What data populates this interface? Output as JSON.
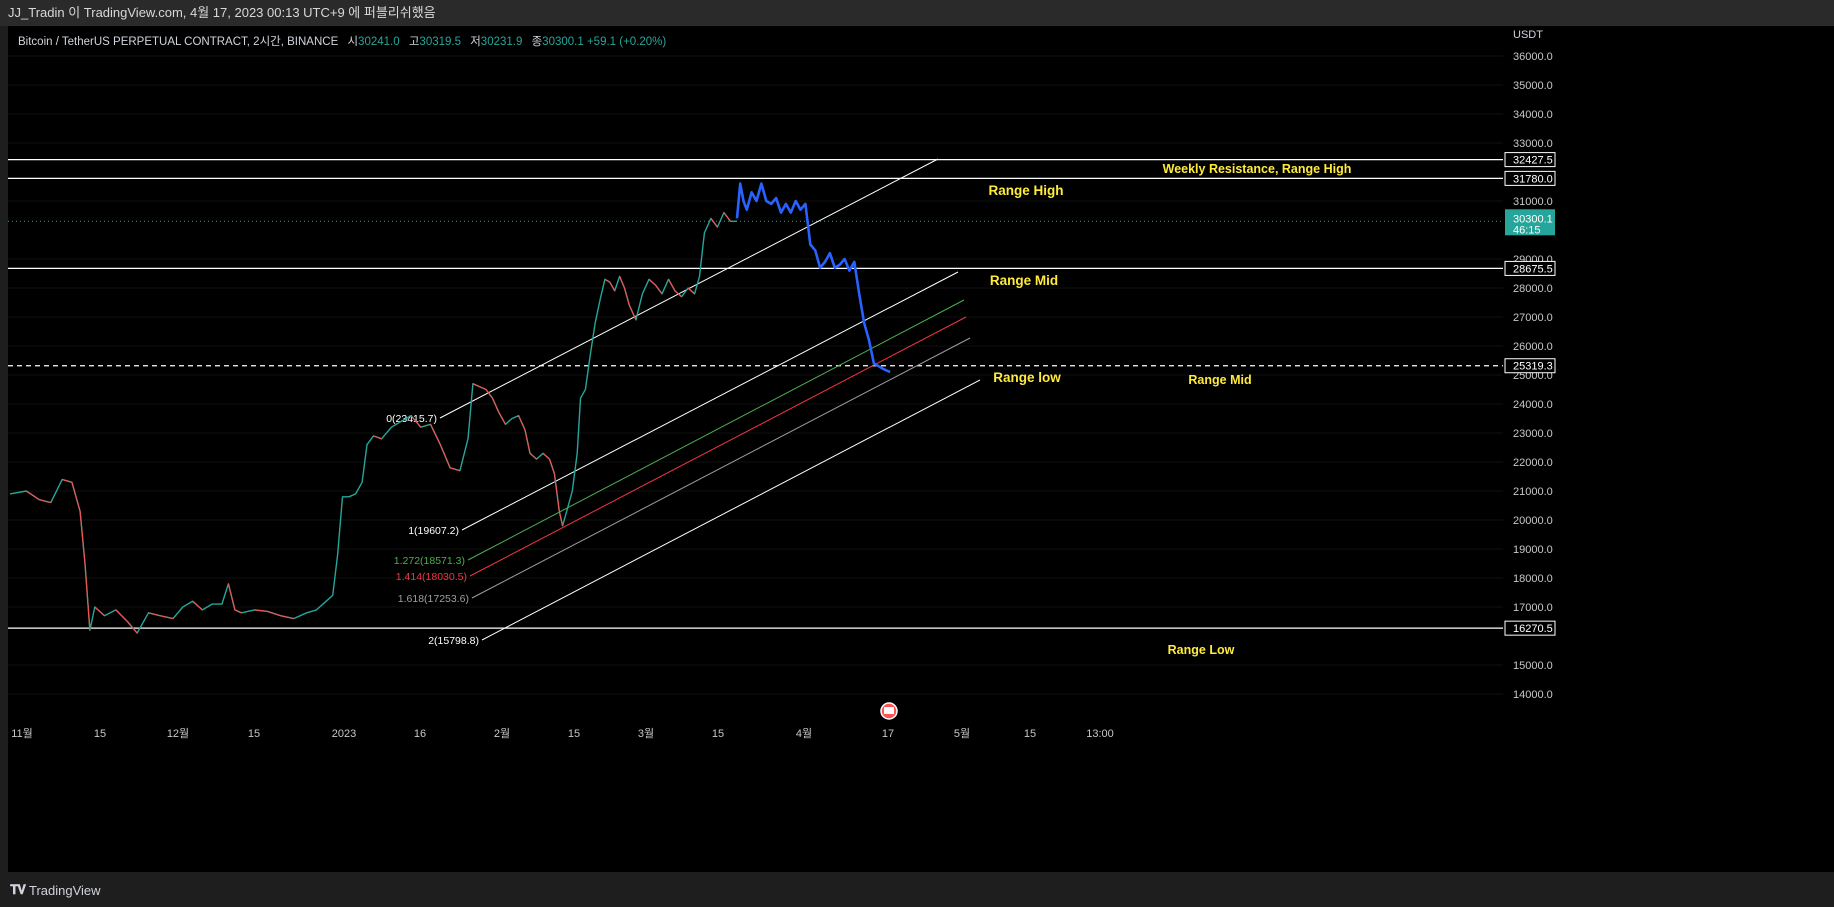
{
  "header": {
    "text": "JJ_Tradin 이 TradingView.com, 4월 17, 2023 00:13 UTC+9 에 퍼블리쉬했음"
  },
  "legend": {
    "symbol": "Bitcoin / TetherUS PERPETUAL CONTRACT, 2시간, BINANCE",
    "open_label": "시",
    "open": "30241.0",
    "high_label": "고",
    "high": "30319.5",
    "low_label": "저",
    "low": "30231.9",
    "close_label": "종",
    "close": "30300.1",
    "change": "+59.1 (+0.20%)"
  },
  "footer": {
    "brand": "TradingView",
    "brand_icon": "tradingview-logo-icon"
  },
  "colors": {
    "up": "#26a69a",
    "down": "#ef5350",
    "projection": "#2962ff",
    "annotation": "#ffeb3b",
    "line": "#ffffff",
    "fib_1272": "#4caf50",
    "fib_1414": "#f23645",
    "fib_1618": "#9e9e9e"
  },
  "chart_data": {
    "type": "line",
    "title": "",
    "y_axis": {
      "unit": "USDT",
      "ticks": [
        "36000.0",
        "35000.0",
        "34000.0",
        "33000.0",
        "31000.0",
        "29000.0",
        "28000.0",
        "27000.0",
        "26000.0",
        "25000.0",
        "24000.0",
        "23000.0",
        "22000.0",
        "21000.0",
        "20000.0",
        "19000.0",
        "18000.0",
        "17000.0",
        "15000.0",
        "14000.0"
      ],
      "ylim": [
        13500,
        36500
      ],
      "scale": "linear"
    },
    "x_axis": {
      "ticks": [
        "11월",
        "15",
        "12월",
        "15",
        "2023",
        "16",
        "2월",
        "15",
        "3월",
        "15",
        "4월",
        "17",
        "5월",
        "15",
        "13:00"
      ]
    },
    "current_price": {
      "value": "30300.1",
      "countdown": "46:15"
    },
    "horizontal_levels": [
      {
        "value": 32427.5,
        "label": "32427.5",
        "style": "solid"
      },
      {
        "value": 31780.0,
        "label": "31780.0",
        "style": "solid"
      },
      {
        "value": 28675.5,
        "label": "28675.5",
        "style": "solid"
      },
      {
        "value": 25319.3,
        "label": "25319.3",
        "style": "dashed"
      },
      {
        "value": 16270.5,
        "label": "16270.5",
        "style": "solid"
      }
    ],
    "channel_fib_labels": [
      {
        "text": "0(23415.7)",
        "value": 23415.7,
        "color": "white"
      },
      {
        "text": "1(19607.2)",
        "value": 19607.2,
        "color": "white"
      },
      {
        "text": "1.272(18571.3)",
        "value": 18571.3,
        "color": "green"
      },
      {
        "text": "1.414(18030.5)",
        "value": 18030.5,
        "color": "red"
      },
      {
        "text": "1.618(17253.6)",
        "value": 17253.6,
        "color": "gray"
      },
      {
        "text": "2(15798.8)",
        "value": 15798.8,
        "color": "white"
      }
    ],
    "annotations": [
      {
        "text": "Weekly Resistance, Range High"
      },
      {
        "text": "Range High"
      },
      {
        "text": "Range Mid"
      },
      {
        "text": "Range low"
      },
      {
        "text": "Range Mid"
      },
      {
        "text": "Range Low"
      }
    ],
    "price_path": [
      {
        "x": 0,
        "y": 20900
      },
      {
        "x": 10,
        "y": 21000
      },
      {
        "x": 18,
        "y": 20700
      },
      {
        "x": 25,
        "y": 20600
      },
      {
        "x": 32,
        "y": 21400
      },
      {
        "x": 38,
        "y": 21300
      },
      {
        "x": 43,
        "y": 20300
      },
      {
        "x": 46,
        "y": 18500
      },
      {
        "x": 49,
        "y": 16200
      },
      {
        "x": 52,
        "y": 17000
      },
      {
        "x": 58,
        "y": 16700
      },
      {
        "x": 65,
        "y": 16900
      },
      {
        "x": 72,
        "y": 16500
      },
      {
        "x": 78,
        "y": 16100
      },
      {
        "x": 85,
        "y": 16800
      },
      {
        "x": 92,
        "y": 16700
      },
      {
        "x": 100,
        "y": 16600
      },
      {
        "x": 106,
        "y": 17000
      },
      {
        "x": 112,
        "y": 17200
      },
      {
        "x": 118,
        "y": 16900
      },
      {
        "x": 124,
        "y": 17100
      },
      {
        "x": 130,
        "y": 17100
      },
      {
        "x": 134,
        "y": 17800
      },
      {
        "x": 138,
        "y": 16900
      },
      {
        "x": 142,
        "y": 16800
      },
      {
        "x": 150,
        "y": 16900
      },
      {
        "x": 158,
        "y": 16850
      },
      {
        "x": 166,
        "y": 16700
      },
      {
        "x": 174,
        "y": 16600
      },
      {
        "x": 182,
        "y": 16800
      },
      {
        "x": 188,
        "y": 16900
      },
      {
        "x": 194,
        "y": 17200
      },
      {
        "x": 198,
        "y": 17400
      },
      {
        "x": 201,
        "y": 18800
      },
      {
        "x": 204,
        "y": 20800
      },
      {
        "x": 208,
        "y": 20800
      },
      {
        "x": 212,
        "y": 20900
      },
      {
        "x": 216,
        "y": 21300
      },
      {
        "x": 219,
        "y": 22600
      },
      {
        "x": 223,
        "y": 22900
      },
      {
        "x": 228,
        "y": 22800
      },
      {
        "x": 234,
        "y": 23200
      },
      {
        "x": 240,
        "y": 23400
      },
      {
        "x": 246,
        "y": 23600
      },
      {
        "x": 252,
        "y": 23200
      },
      {
        "x": 258,
        "y": 23300
      },
      {
        "x": 264,
        "y": 22600
      },
      {
        "x": 270,
        "y": 21800
      },
      {
        "x": 276,
        "y": 21700
      },
      {
        "x": 281,
        "y": 22800
      },
      {
        "x": 284,
        "y": 24700
      },
      {
        "x": 288,
        "y": 24600
      },
      {
        "x": 292,
        "y": 24500
      },
      {
        "x": 296,
        "y": 24200
      },
      {
        "x": 300,
        "y": 23700
      },
      {
        "x": 304,
        "y": 23300
      },
      {
        "x": 308,
        "y": 23500
      },
      {
        "x": 312,
        "y": 23600
      },
      {
        "x": 316,
        "y": 23100
      },
      {
        "x": 319,
        "y": 22300
      },
      {
        "x": 323,
        "y": 22100
      },
      {
        "x": 327,
        "y": 22300
      },
      {
        "x": 331,
        "y": 22100
      },
      {
        "x": 334,
        "y": 21600
      },
      {
        "x": 337,
        "y": 20300
      },
      {
        "x": 339,
        "y": 19800
      },
      {
        "x": 342,
        "y": 20400
      },
      {
        "x": 345,
        "y": 21000
      },
      {
        "x": 348,
        "y": 22300
      },
      {
        "x": 350,
        "y": 24200
      },
      {
        "x": 353,
        "y": 24500
      },
      {
        "x": 356,
        "y": 25700
      },
      {
        "x": 359,
        "y": 26800
      },
      {
        "x": 362,
        "y": 27600
      },
      {
        "x": 365,
        "y": 28300
      },
      {
        "x": 368,
        "y": 28200
      },
      {
        "x": 371,
        "y": 27900
      },
      {
        "x": 374,
        "y": 28400
      },
      {
        "x": 377,
        "y": 28000
      },
      {
        "x": 380,
        "y": 27400
      },
      {
        "x": 384,
        "y": 26900
      },
      {
        "x": 388,
        "y": 27800
      },
      {
        "x": 392,
        "y": 28300
      },
      {
        "x": 396,
        "y": 28100
      },
      {
        "x": 400,
        "y": 27800
      },
      {
        "x": 404,
        "y": 28300
      },
      {
        "x": 408,
        "y": 27900
      },
      {
        "x": 412,
        "y": 27700
      },
      {
        "x": 416,
        "y": 28000
      },
      {
        "x": 420,
        "y": 27800
      },
      {
        "x": 423,
        "y": 28400
      },
      {
        "x": 426,
        "y": 29900
      },
      {
        "x": 430,
        "y": 30400
      },
      {
        "x": 434,
        "y": 30100
      },
      {
        "x": 438,
        "y": 30600
      },
      {
        "x": 442,
        "y": 30300
      },
      {
        "x": 446,
        "y": 30300
      }
    ],
    "projection_path": [
      {
        "x": 446,
        "y": 30400
      },
      {
        "x": 448,
        "y": 31600
      },
      {
        "x": 450,
        "y": 31000
      },
      {
        "x": 452,
        "y": 30700
      },
      {
        "x": 455,
        "y": 31300
      },
      {
        "x": 458,
        "y": 31000
      },
      {
        "x": 461,
        "y": 31600
      },
      {
        "x": 464,
        "y": 31000
      },
      {
        "x": 467,
        "y": 30900
      },
      {
        "x": 470,
        "y": 31100
      },
      {
        "x": 473,
        "y": 30600
      },
      {
        "x": 476,
        "y": 30900
      },
      {
        "x": 479,
        "y": 30600
      },
      {
        "x": 482,
        "y": 31000
      },
      {
        "x": 485,
        "y": 30700
      },
      {
        "x": 488,
        "y": 30900
      },
      {
        "x": 491,
        "y": 29500
      },
      {
        "x": 494,
        "y": 29300
      },
      {
        "x": 497,
        "y": 28700
      },
      {
        "x": 500,
        "y": 28900
      },
      {
        "x": 503,
        "y": 29200
      },
      {
        "x": 506,
        "y": 28700
      },
      {
        "x": 509,
        "y": 28800
      },
      {
        "x": 512,
        "y": 29000
      },
      {
        "x": 515,
        "y": 28600
      },
      {
        "x": 518,
        "y": 28900
      },
      {
        "x": 521,
        "y": 27800
      },
      {
        "x": 524,
        "y": 26800
      },
      {
        "x": 527,
        "y": 26200
      },
      {
        "x": 530,
        "y": 25400
      },
      {
        "x": 533,
        "y": 25300
      },
      {
        "x": 536,
        "y": 25200
      },
      {
        "x": 540,
        "y": 25100
      }
    ]
  }
}
